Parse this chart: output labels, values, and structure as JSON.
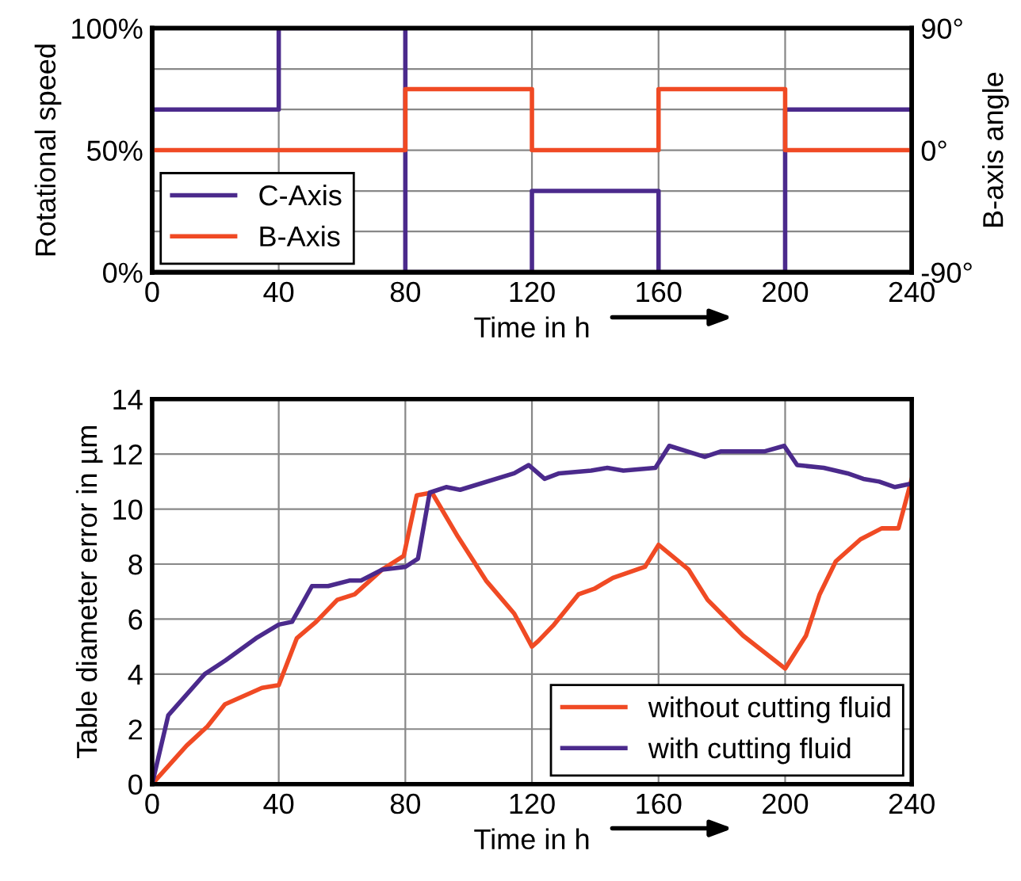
{
  "chart_data": [
    {
      "type": "step",
      "xlabel": "Time in h",
      "ylabel": "Rotational speed",
      "y2label": "B-axis angle",
      "x": [
        0,
        40,
        80,
        120,
        160,
        200,
        240
      ],
      "series": [
        {
          "name": "C-Axis",
          "color": "#4b2a8c",
          "values": [
            66.7,
            100,
            0,
            33.3,
            0,
            66.7,
            66.7
          ]
        },
        {
          "name": "B-Axis",
          "color": "#f04a24",
          "axis": "y2",
          "values": [
            0,
            0,
            45,
            0,
            45,
            0,
            0
          ]
        }
      ],
      "xlim": [
        0,
        240
      ],
      "xticks": [
        0,
        40,
        80,
        120,
        160,
        200,
        240
      ],
      "ylim": [
        0,
        100
      ],
      "yticks": [
        {
          "value": 0,
          "label": "0%"
        },
        {
          "value": 16.7,
          "label": null
        },
        {
          "value": 33.3,
          "label": null
        },
        {
          "value": 50,
          "label": "50%"
        },
        {
          "value": 66.7,
          "label": null
        },
        {
          "value": 83.3,
          "label": null
        },
        {
          "value": 100,
          "label": "100%"
        }
      ],
      "y2lim": [
        -90,
        90
      ],
      "y2ticks": [
        {
          "value": -90,
          "label": "-90°"
        },
        {
          "value": 0,
          "label": "0°"
        },
        {
          "value": 90,
          "label": "90°"
        }
      ],
      "grid": true,
      "legend": "bottom left"
    },
    {
      "type": "line",
      "xlabel": "Time in h",
      "ylabel": "Table diameter error in µm",
      "series": [
        {
          "name": "without cutting fluid",
          "color": "#f04a24",
          "x": [
            0,
            10.9,
            17.5,
            23,
            34.7,
            40,
            45.7,
            51.8,
            58.5,
            64,
            72.7,
            79.5,
            83.6,
            88.4,
            96.6,
            105.5,
            114.4,
            120,
            122,
            127,
            134.7,
            139.7,
            145.6,
            155.7,
            160,
            169.5,
            175.5,
            186.7,
            200,
            206.6,
            210.9,
            216,
            223.8,
            230.5,
            235.8,
            240
          ],
          "values": [
            0,
            1.4,
            2.1,
            2.9,
            3.5,
            3.6,
            5.3,
            5.9,
            6.7,
            6.9,
            7.8,
            8.3,
            10.5,
            10.6,
            9.0,
            7.4,
            6.2,
            5.0,
            5.2,
            5.8,
            6.9,
            7.1,
            7.5,
            7.9,
            8.7,
            7.8,
            6.7,
            5.4,
            4.2,
            5.4,
            6.9,
            8.1,
            8.9,
            9.3,
            9.3,
            11.1
          ]
        },
        {
          "name": "with cutting fluid",
          "color": "#4b2a8c",
          "x": [
            0,
            5.1,
            16.6,
            23.2,
            32.8,
            40,
            44.2,
            50.5,
            55.6,
            62.3,
            66,
            72.7,
            80,
            84,
            87.7,
            92.9,
            97.3,
            114.4,
            119,
            124,
            128.6,
            138.7,
            143.8,
            148.9,
            159,
            163.4,
            174.6,
            179.8,
            186.7,
            193.6,
            199.7,
            203.8,
            212.2,
            219.7,
            224.7,
            229.7,
            234.7,
            238.8
          ],
          "values": [
            0,
            2.5,
            4.0,
            4.5,
            5.3,
            5.8,
            5.9,
            7.2,
            7.2,
            7.4,
            7.4,
            7.8,
            7.9,
            8.2,
            10.6,
            10.8,
            10.7,
            11.3,
            11.6,
            11.1,
            11.3,
            11.4,
            11.5,
            11.4,
            11.5,
            12.3,
            11.9,
            12.1,
            12.1,
            12.1,
            12.3,
            11.6,
            11.5,
            11.3,
            11.1,
            11.0,
            10.8,
            10.9
          ]
        }
      ],
      "xlim": [
        0,
        240
      ],
      "xticks": [
        0,
        40,
        80,
        120,
        160,
        200,
        240
      ],
      "ylim": [
        0,
        14
      ],
      "yticks": [
        0,
        2,
        4,
        6,
        8,
        10,
        12,
        14
      ],
      "grid": true,
      "legend": "bottom right"
    }
  ]
}
